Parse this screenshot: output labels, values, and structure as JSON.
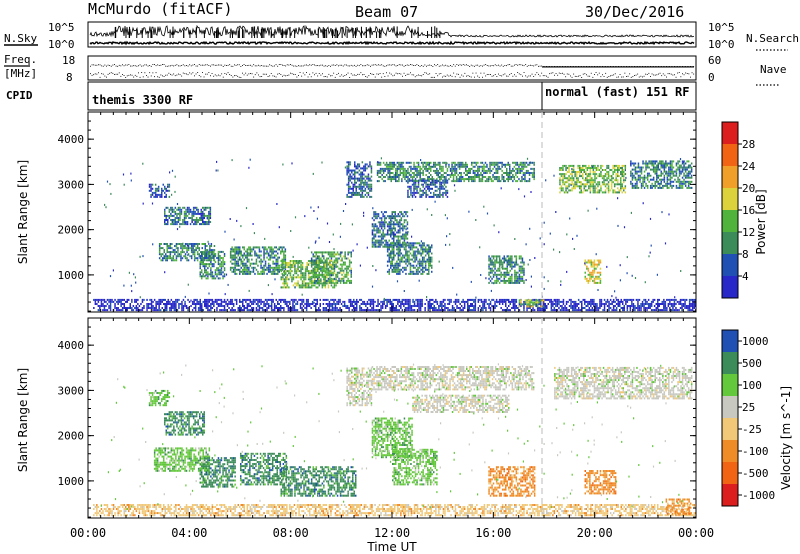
{
  "header": {
    "site": "McMurdo (fitACF)",
    "beam": "Beam 07",
    "date": "30/Dec/2016"
  },
  "strip": {
    "nsky_label": "N.Sky",
    "nsky_ticks": [
      "10^5",
      "10^0"
    ],
    "nsearch_label": "N.Search",
    "nsearch_ticks": [
      "10^5",
      "10^0"
    ],
    "freq_label_top": "Freq.",
    "freq_label_bottom": "[MHz]",
    "freq_ticks": [
      "18",
      "8"
    ],
    "nave_label": "Nave",
    "nave_ticks": [
      "60",
      "0"
    ],
    "cpid_label": "CPID",
    "cpid_segments": [
      {
        "label": "themis 3300 RF",
        "start_hour": 0,
        "end_hour": 18
      },
      {
        "label": "normal (fast) 151 RF",
        "start_hour": 18,
        "end_hour": 24
      }
    ]
  },
  "colors": {
    "power": [
      "#2828c8",
      "#2050b4",
      "#3c8c5a",
      "#50b43c",
      "#dcd23c",
      "#f0a028",
      "#f06414",
      "#dc1e1e"
    ],
    "velocity": [
      "#dc1e1e",
      "#f06414",
      "#f08c28",
      "#f0c878",
      "#c8c8c0",
      "#64c83c",
      "#3c8c5a",
      "#2050b4"
    ]
  },
  "chart_data": [
    {
      "type": "heatmap",
      "name": "power",
      "xlabel": "",
      "ylabel": "Slant Range [km]",
      "xlim": [
        0,
        24
      ],
      "ylim": [
        180,
        4600
      ],
      "yticks": [
        1000,
        2000,
        3000,
        4000
      ],
      "colorbar": {
        "label": "Power [dB]",
        "ticks": [
          "4",
          "8",
          "12",
          "16",
          "20",
          "24",
          "28"
        ],
        "range": [
          0,
          30
        ]
      },
      "echo_regions": [
        {
          "t0": 0.2,
          "t1": 24.0,
          "r0": 200,
          "r1": 450,
          "level": 5
        },
        {
          "t0": 2.4,
          "t1": 3.2,
          "r0": 2700,
          "r1": 3000,
          "level": 10
        },
        {
          "t0": 3.0,
          "t1": 4.8,
          "r0": 2100,
          "r1": 2500,
          "level": 12
        },
        {
          "t0": 2.8,
          "t1": 5.0,
          "r0": 1300,
          "r1": 1700,
          "level": 13
        },
        {
          "t0": 4.4,
          "t1": 5.4,
          "r0": 900,
          "r1": 1500,
          "level": 14
        },
        {
          "t0": 5.6,
          "t1": 7.8,
          "r0": 1000,
          "r1": 1600,
          "level": 14
        },
        {
          "t0": 7.6,
          "t1": 9.8,
          "r0": 700,
          "r1": 1300,
          "level": 18
        },
        {
          "t0": 8.8,
          "t1": 10.4,
          "r0": 800,
          "r1": 1500,
          "level": 16
        },
        {
          "t0": 10.2,
          "t1": 11.2,
          "r0": 2700,
          "r1": 3500,
          "level": 11
        },
        {
          "t0": 11.2,
          "t1": 12.6,
          "r0": 1600,
          "r1": 2400,
          "level": 12
        },
        {
          "t0": 11.8,
          "t1": 13.6,
          "r0": 1000,
          "r1": 1700,
          "level": 13
        },
        {
          "t0": 11.4,
          "t1": 17.6,
          "r0": 3050,
          "r1": 3500,
          "level": 14
        },
        {
          "t0": 12.6,
          "t1": 14.2,
          "r0": 2700,
          "r1": 3100,
          "level": 10
        },
        {
          "t0": 15.8,
          "t1": 17.2,
          "r0": 800,
          "r1": 1400,
          "level": 14
        },
        {
          "t0": 17.0,
          "t1": 18.0,
          "r0": 280,
          "r1": 430,
          "level": 20
        },
        {
          "t0": 19.6,
          "t1": 20.2,
          "r0": 800,
          "r1": 1300,
          "level": 22
        },
        {
          "t0": 18.6,
          "t1": 21.2,
          "r0": 2800,
          "r1": 3400,
          "level": 18
        },
        {
          "t0": 21.4,
          "t1": 23.8,
          "r0": 2900,
          "r1": 3500,
          "level": 13
        }
      ]
    },
    {
      "type": "heatmap",
      "name": "velocity",
      "xlabel": "Time UT",
      "ylabel": "Slant Range [km]",
      "xlim": [
        0,
        24
      ],
      "ylim": [
        180,
        4600
      ],
      "xticks": [
        "00:00",
        "04:00",
        "08:00",
        "12:00",
        "16:00",
        "20:00",
        "00:00"
      ],
      "yticks": [
        1000,
        2000,
        3000,
        4000
      ],
      "colorbar": {
        "label": "Velocity [m s^-1]",
        "ticks": [
          "-1000",
          "-500",
          "-100",
          "-25",
          "25",
          "100",
          "500",
          "1000"
        ]
      },
      "echo_regions": [
        {
          "t0": 0.2,
          "t1": 24.0,
          "r0": 220,
          "r1": 480,
          "level": 3
        },
        {
          "t0": 2.4,
          "t1": 3.2,
          "r0": 2650,
          "r1": 3000,
          "level": 5
        },
        {
          "t0": 3.0,
          "t1": 4.6,
          "r0": 2000,
          "r1": 2500,
          "level": 6
        },
        {
          "t0": 2.6,
          "t1": 4.8,
          "r0": 1200,
          "r1": 1700,
          "level": 5
        },
        {
          "t0": 4.4,
          "t1": 5.8,
          "r0": 850,
          "r1": 1500,
          "level": 6
        },
        {
          "t0": 6.0,
          "t1": 7.8,
          "r0": 900,
          "r1": 1600,
          "level": 6
        },
        {
          "t0": 7.6,
          "t1": 10.6,
          "r0": 650,
          "r1": 1300,
          "level": 6
        },
        {
          "t0": 10.2,
          "t1": 11.2,
          "r0": 2650,
          "r1": 3500,
          "level": 4
        },
        {
          "t0": 11.2,
          "t1": 12.8,
          "r0": 1500,
          "r1": 2400,
          "level": 5
        },
        {
          "t0": 12.0,
          "t1": 13.8,
          "r0": 900,
          "r1": 1700,
          "level": 5
        },
        {
          "t0": 11.2,
          "t1": 17.6,
          "r0": 3000,
          "r1": 3500,
          "level": 4
        },
        {
          "t0": 12.8,
          "t1": 16.6,
          "r0": 2500,
          "r1": 2900,
          "level": 4
        },
        {
          "t0": 15.8,
          "t1": 17.6,
          "r0": 650,
          "r1": 1300,
          "level": 2
        },
        {
          "t0": 19.6,
          "t1": 20.8,
          "r0": 700,
          "r1": 1200,
          "level": 2
        },
        {
          "t0": 18.4,
          "t1": 23.8,
          "r0": 2800,
          "r1": 3500,
          "level": 4
        },
        {
          "t0": 22.8,
          "t1": 23.8,
          "r0": 250,
          "r1": 600,
          "level": 2
        }
      ]
    }
  ]
}
